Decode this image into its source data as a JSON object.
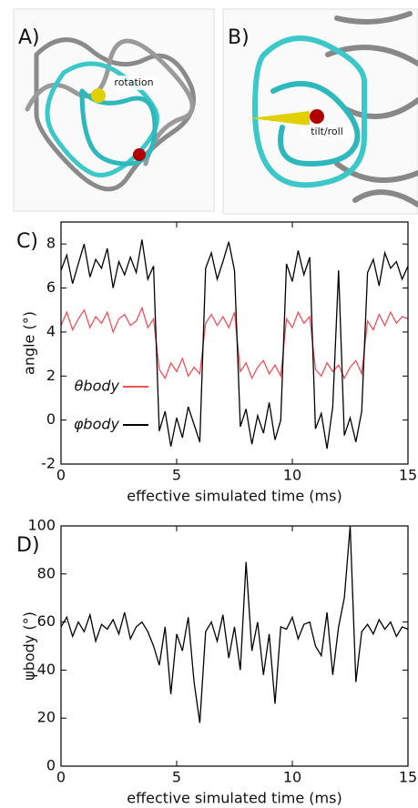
{
  "panels": [
    {
      "label": "A)",
      "annotation": "rotation"
    },
    {
      "label": "B)",
      "annotation": "tilt/roll"
    }
  ],
  "chart_data": [
    {
      "type": "line",
      "panel_label": "C)",
      "y_label": "angle (°)",
      "x_label": "effective simulated time (ms)",
      "xlim": [
        0,
        15
      ],
      "xticks": [
        0,
        5,
        10,
        15
      ],
      "ylim": [
        -2,
        9
      ],
      "yticks": [
        -2,
        0,
        2,
        4,
        6,
        8
      ],
      "legend": "lower left",
      "x": [
        0,
        0.25,
        0.5,
        0.75,
        1,
        1.25,
        1.5,
        1.75,
        2,
        2.25,
        2.5,
        2.75,
        3,
        3.25,
        3.5,
        3.75,
        4,
        4.25,
        4.5,
        4.75,
        5,
        5.25,
        5.5,
        5.75,
        6,
        6.25,
        6.5,
        6.75,
        7,
        7.25,
        7.5,
        7.75,
        8,
        8.25,
        8.5,
        8.75,
        9,
        9.25,
        9.5,
        9.75,
        10,
        10.25,
        10.5,
        10.75,
        11,
        11.25,
        11.5,
        11.75,
        12,
        12.25,
        12.5,
        12.75,
        13,
        13.25,
        13.5,
        13.75,
        14,
        14.25,
        14.5,
        14.75,
        15
      ],
      "series": [
        {
          "name": "θbody",
          "color": "#f0505a",
          "values": [
            4.3,
            4.9,
            4.1,
            4.6,
            5.0,
            4.2,
            4.7,
            4.4,
            4.9,
            4.0,
            4.6,
            4.8,
            4.3,
            4.5,
            5.1,
            4.2,
            4.6,
            2.3,
            1.9,
            2.6,
            2.2,
            2.8,
            2.0,
            2.4,
            2.1,
            4.4,
            4.8,
            4.3,
            4.7,
            4.2,
            4.9,
            2.2,
            2.6,
            1.9,
            2.4,
            2.7,
            2.1,
            2.5,
            2.0,
            4.6,
            4.2,
            4.9,
            4.4,
            4.7,
            2.3,
            2.0,
            2.6,
            2.2,
            2.5,
            1.9,
            2.4,
            2.7,
            2.1,
            4.5,
            4.1,
            4.8,
            4.3,
            4.9,
            4.4,
            4.7,
            4.6
          ]
        },
        {
          "name": "φbody",
          "color": "#000000",
          "values": [
            6.8,
            7.5,
            6.2,
            7.1,
            8.0,
            6.5,
            7.3,
            6.9,
            7.8,
            6.0,
            7.2,
            6.6,
            7.4,
            6.7,
            8.2,
            6.4,
            7.0,
            -0.5,
            0.4,
            -1.2,
            0.1,
            -0.8,
            0.6,
            -0.2,
            -1.0,
            6.9,
            7.6,
            6.4,
            7.2,
            8.1,
            6.8,
            -0.3,
            0.5,
            -1.1,
            0.2,
            -0.6,
            0.8,
            -0.9,
            0.0,
            7.1,
            6.3,
            7.7,
            6.6,
            7.4,
            -0.4,
            0.3,
            -1.3,
            0.6,
            6.8,
            -0.7,
            0.1,
            -1.0,
            0.4,
            6.7,
            7.3,
            6.1,
            7.6,
            6.9,
            7.2,
            6.4,
            7.0
          ]
        }
      ]
    },
    {
      "type": "line",
      "panel_label": "D)",
      "y_label": "ψbody (°)",
      "x_label": "effective simulated time (ms)",
      "xlim": [
        0,
        15
      ],
      "xticks": [
        0,
        5,
        10,
        15
      ],
      "ylim": [
        0,
        100
      ],
      "yticks": [
        0,
        20,
        40,
        60,
        80,
        100
      ],
      "x": [
        0,
        0.25,
        0.5,
        0.75,
        1,
        1.25,
        1.5,
        1.75,
        2,
        2.25,
        2.5,
        2.75,
        3,
        3.25,
        3.5,
        3.75,
        4,
        4.25,
        4.5,
        4.75,
        5,
        5.25,
        5.5,
        5.75,
        6,
        6.25,
        6.5,
        6.75,
        7,
        7.25,
        7.5,
        7.75,
        8,
        8.25,
        8.5,
        8.75,
        9,
        9.25,
        9.5,
        9.75,
        10,
        10.25,
        10.5,
        10.75,
        11,
        11.25,
        11.5,
        11.75,
        12,
        12.25,
        12.5,
        12.75,
        13,
        13.25,
        13.5,
        13.75,
        14,
        14.25,
        14.5,
        14.75,
        15
      ],
      "series": [
        {
          "color": "#000000",
          "values": [
            58,
            62,
            54,
            60,
            56,
            63,
            52,
            59,
            57,
            61,
            55,
            64,
            53,
            58,
            60,
            56,
            50,
            42,
            58,
            30,
            55,
            48,
            62,
            35,
            18,
            56,
            60,
            52,
            63,
            45,
            58,
            40,
            85,
            48,
            60,
            38,
            55,
            26,
            58,
            57,
            62,
            53,
            59,
            60,
            50,
            46,
            64,
            38,
            58,
            70,
            100,
            35,
            56,
            59,
            55,
            61,
            57,
            60,
            54,
            58,
            57
          ]
        }
      ]
    }
  ]
}
